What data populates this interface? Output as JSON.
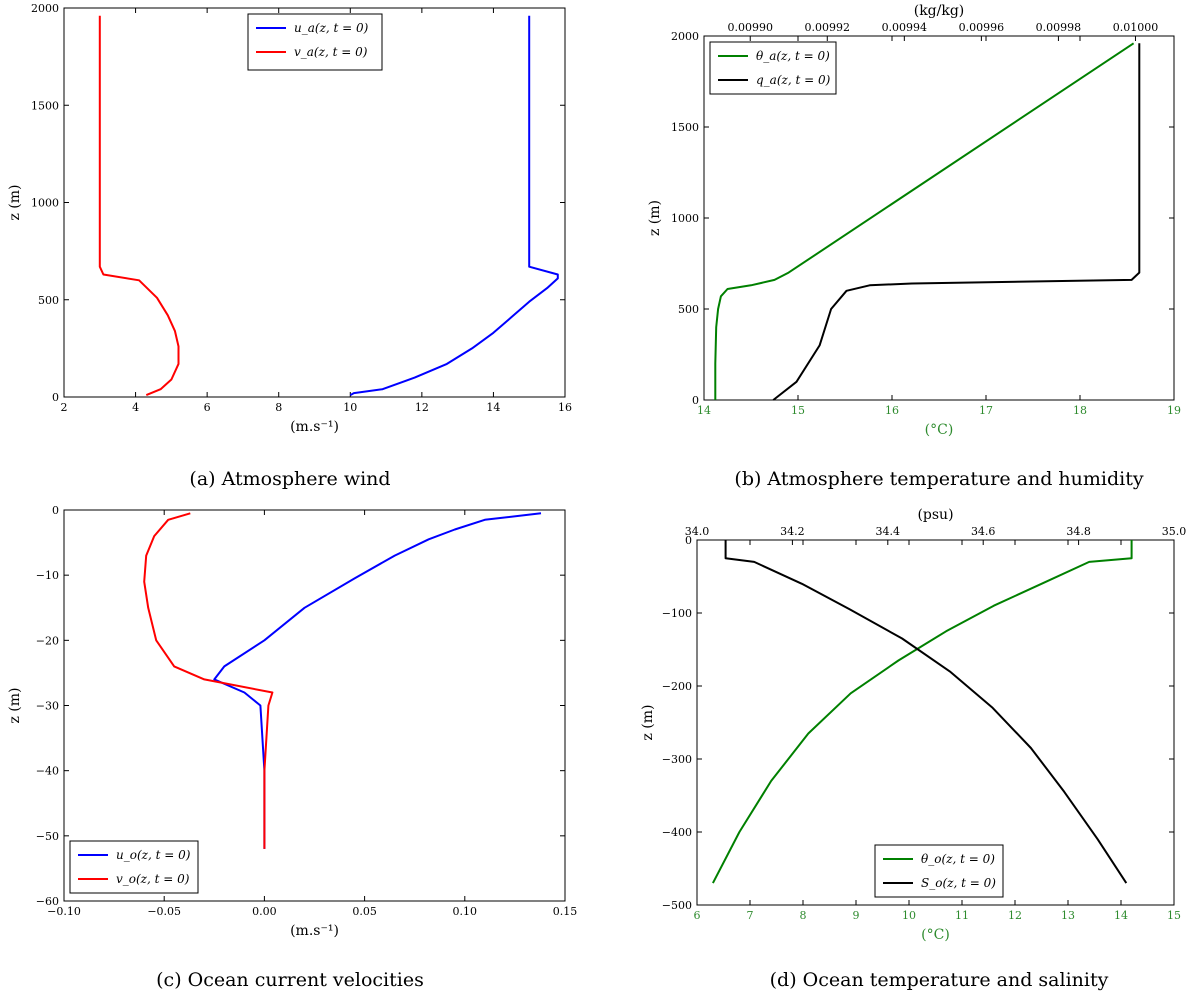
{
  "figure": {
    "charts": [
      {
        "caption": "(a) Atmosphere wind",
        "x_bottom": {
          "label": "(m.s⁻¹)",
          "range": [
            2,
            16
          ],
          "ticks": [
            2,
            4,
            6,
            8,
            10,
            12,
            14,
            16
          ],
          "tick_labels": [
            "2",
            "4",
            "6",
            "8",
            "10",
            "12",
            "14",
            "16"
          ]
        },
        "y": {
          "label": "z (m)",
          "range": [
            0,
            2000
          ],
          "ticks": [
            0,
            500,
            1000,
            1500,
            2000
          ],
          "tick_labels": [
            "0",
            "500",
            "1000",
            "1500",
            "2000"
          ]
        },
        "legend_pos": "top-center"
      },
      {
        "caption": "(b) Atmosphere temperature and humidity",
        "x_bottom": {
          "label": "(°C)",
          "range": [
            14,
            19
          ],
          "ticks": [
            14,
            15,
            16,
            17,
            18,
            19
          ],
          "tick_labels": [
            "14",
            "15",
            "16",
            "17",
            "18",
            "19"
          ],
          "color": "#2e8b2e"
        },
        "x_top": {
          "label": "(kg/kg)",
          "range": [
            0.009888,
            0.01001
          ],
          "ticks": [
            0.0099,
            0.00992,
            0.00994,
            0.00996,
            0.00998,
            0.01
          ],
          "tick_labels": [
            "0.00990",
            "0.00992",
            "0.00994",
            "0.00996",
            "0.00998",
            "0.01000"
          ]
        },
        "y": {
          "label": "z (m)",
          "range": [
            0,
            2000
          ],
          "ticks": [
            0,
            500,
            1000,
            1500,
            2000
          ],
          "tick_labels": [
            "0",
            "500",
            "1000",
            "1500",
            "2000"
          ]
        },
        "legend_pos": "top-left"
      },
      {
        "caption": "(c) Ocean current velocities",
        "x_bottom": {
          "label": "(m.s⁻¹)",
          "range": [
            -0.1,
            0.15
          ],
          "ticks": [
            -0.1,
            -0.05,
            0,
            0.05,
            0.1,
            0.15
          ],
          "tick_labels": [
            "−0.10",
            "−0.05",
            "0.00",
            "0.05",
            "0.10",
            "0.15"
          ]
        },
        "y": {
          "label": "z (m)",
          "range": [
            -60,
            0
          ],
          "ticks": [
            -60,
            -50,
            -40,
            -30,
            -20,
            -10,
            0
          ],
          "tick_labels": [
            "−60",
            "−50",
            "−40",
            "−30",
            "−20",
            "−10",
            "0"
          ]
        },
        "legend_pos": "bottom-left"
      },
      {
        "caption": "(d) Ocean temperature and salinity",
        "x_bottom": {
          "label": "(°C)",
          "range": [
            6,
            15
          ],
          "ticks": [
            6,
            7,
            8,
            9,
            10,
            11,
            12,
            13,
            14,
            15
          ],
          "tick_labels": [
            "6",
            "7",
            "8",
            "9",
            "10",
            "11",
            "12",
            "13",
            "14",
            "15"
          ],
          "color": "#2e8b2e"
        },
        "x_top": {
          "label": "(psu)",
          "range": [
            34.0,
            35.0
          ],
          "ticks": [
            34.0,
            34.2,
            34.4,
            34.6,
            34.8,
            35.0
          ],
          "tick_labels": [
            "34.0",
            "34.2",
            "34.4",
            "34.6",
            "34.8",
            "35.0"
          ]
        },
        "y": {
          "label": "z (m)",
          "range": [
            -500,
            0
          ],
          "ticks": [
            -500,
            -400,
            -300,
            -200,
            -100,
            0
          ],
          "tick_labels": [
            "−500",
            "−400",
            "−300",
            "−200",
            "−100",
            "0"
          ]
        },
        "legend_pos": "bottom-center"
      }
    ]
  },
  "chart_data": [
    {
      "type": "line",
      "title": "(a) Atmosphere wind",
      "xlabel": "(m.s⁻¹)",
      "ylabel": "z (m)",
      "xlim": [
        2,
        16
      ],
      "ylim": [
        0,
        2000
      ],
      "series": [
        {
          "name": "u_a(z, t = 0)",
          "color": "#0000ff",
          "axis": "bottom",
          "x": [
            10.0,
            10.1,
            10.9,
            11.8,
            12.7,
            13.4,
            14.0,
            14.5,
            15.0,
            15.5,
            15.8,
            15.8,
            15.0,
            15.0
          ],
          "y": [
            10,
            20,
            40,
            100,
            170,
            250,
            330,
            410,
            490,
            560,
            610,
            630,
            670,
            1960
          ]
        },
        {
          "name": "v_a(z, t = 0)",
          "color": "#ff0000",
          "axis": "bottom",
          "x": [
            4.3,
            4.7,
            5.0,
            5.2,
            5.2,
            5.1,
            4.9,
            4.6,
            4.1,
            3.1,
            3.0,
            3.0
          ],
          "y": [
            10,
            40,
            90,
            170,
            260,
            340,
            420,
            510,
            600,
            630,
            670,
            1960
          ]
        }
      ]
    },
    {
      "type": "line",
      "title": "(b) Atmosphere temperature and humidity",
      "xlabel": "(°C)",
      "x2label": "(kg/kg)",
      "ylabel": "z (m)",
      "xlim": [
        14,
        19
      ],
      "x2lim": [
        0.009888,
        0.01001
      ],
      "ylim": [
        0,
        2000
      ],
      "series": [
        {
          "name": "θ_a(z, t = 0)",
          "color": "#008000",
          "axis": "bottom",
          "x": [
            14.12,
            14.12,
            14.13,
            14.15,
            14.18,
            14.25,
            14.5,
            14.75,
            14.9,
            18.57
          ],
          "y": [
            0,
            200,
            400,
            500,
            570,
            610,
            630,
            660,
            700,
            1960
          ]
        },
        {
          "name": "q_a(z, t = 0)",
          "color": "#000000",
          "axis": "top",
          "x": [
            0.009906,
            0.009912,
            0.009918,
            0.009921,
            0.009925,
            0.009931,
            0.009942,
            0.009999,
            0.010001,
            0.010001
          ],
          "y": [
            0,
            100,
            300,
            500,
            600,
            630,
            640,
            660,
            700,
            1960
          ]
        }
      ]
    },
    {
      "type": "line",
      "title": "(c) Ocean current velocities",
      "xlabel": "(m.s⁻¹)",
      "ylabel": "z (m)",
      "xlim": [
        -0.1,
        0.15
      ],
      "ylim": [
        -60,
        0
      ],
      "series": [
        {
          "name": "u_o(z, t = 0)",
          "color": "#0000ff",
          "axis": "bottom",
          "x": [
            0.138,
            0.11,
            0.095,
            0.082,
            0.065,
            0.045,
            0.02,
            0.0,
            -0.02,
            -0.025,
            -0.01,
            -0.002,
            0.0,
            0.0
          ],
          "y": [
            -0.5,
            -1.5,
            -3,
            -4.5,
            -7,
            -10.5,
            -15,
            -20,
            -24,
            -26,
            -28,
            -30,
            -40,
            -52
          ]
        },
        {
          "name": "v_o(z, t = 0)",
          "color": "#ff0000",
          "axis": "bottom",
          "x": [
            -0.037,
            -0.048,
            -0.055,
            -0.059,
            -0.06,
            -0.058,
            -0.054,
            -0.045,
            -0.03,
            0.004,
            0.002,
            0.0,
            0.0
          ],
          "y": [
            -0.5,
            -1.5,
            -4,
            -7,
            -11,
            -15,
            -20,
            -24,
            -26,
            -28,
            -30,
            -40,
            -52
          ]
        }
      ]
    },
    {
      "type": "line",
      "title": "(d) Ocean temperature and salinity",
      "xlabel": "(°C)",
      "x2label": "(psu)",
      "ylabel": "z (m)",
      "xlim": [
        6,
        15
      ],
      "x2lim": [
        34.0,
        35.0
      ],
      "ylim": [
        -500,
        0
      ],
      "series": [
        {
          "name": "θ_o(z, t = 0)",
          "color": "#008000",
          "axis": "bottom",
          "x": [
            14.2,
            14.2,
            13.4,
            12.5,
            11.6,
            10.7,
            9.8,
            8.9,
            8.1,
            7.4,
            6.8,
            6.3
          ],
          "y": [
            0,
            -25,
            -30,
            -60,
            -90,
            -125,
            -165,
            -210,
            -265,
            -330,
            -400,
            -470
          ]
        },
        {
          "name": "S_o(z, t = 0)",
          "color": "#000000",
          "axis": "top",
          "x": [
            34.06,
            34.06,
            34.12,
            34.22,
            34.32,
            34.43,
            34.53,
            34.62,
            34.7,
            34.77,
            34.84,
            34.9
          ],
          "y": [
            0,
            -25,
            -30,
            -60,
            -95,
            -135,
            -180,
            -230,
            -285,
            -345,
            -410,
            -470
          ]
        }
      ]
    }
  ]
}
